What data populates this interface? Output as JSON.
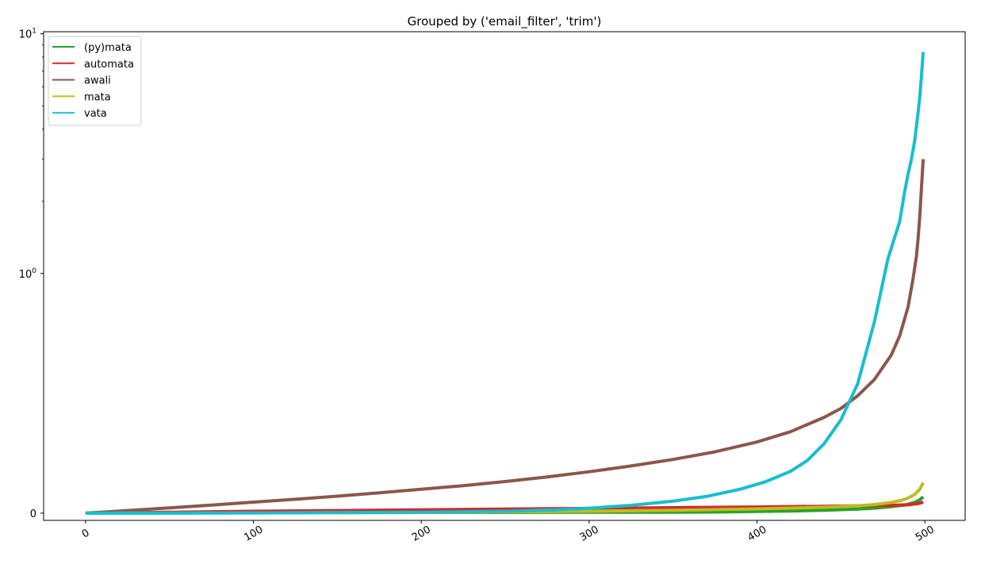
{
  "chart_data": {
    "type": "line",
    "title": "Grouped by ('email_filter', 'trim')",
    "xlabel": "",
    "ylabel": "",
    "xlim": [
      -25,
      524
    ],
    "ylim": [
      -0.03,
      10.2
    ],
    "y_scale": "symlog",
    "x_ticks": [
      0,
      100,
      200,
      300,
      400,
      500
    ],
    "x_tick_labels": [
      "0",
      "100",
      "200",
      "300",
      "400",
      "500"
    ],
    "y_ticks": [
      {
        "value": 0,
        "base": "0",
        "exp": ""
      },
      {
        "value": 1,
        "base": "10",
        "exp": "0"
      },
      {
        "value": 10,
        "base": "10",
        "exp": "1"
      }
    ],
    "legend_position": "upper left",
    "grid": false,
    "series": [
      {
        "name": "(py)mata",
        "color": "#2ca02c",
        "points": [
          [
            0,
            0
          ],
          [
            50,
            0.001
          ],
          [
            100,
            0.002
          ],
          [
            150,
            0.002
          ],
          [
            200,
            0.003
          ],
          [
            250,
            0.003
          ],
          [
            300,
            0.004
          ],
          [
            350,
            0.004
          ],
          [
            380,
            0.005
          ],
          [
            400,
            0.007
          ],
          [
            420,
            0.009
          ],
          [
            440,
            0.012
          ],
          [
            460,
            0.017
          ],
          [
            470,
            0.021
          ],
          [
            480,
            0.027
          ],
          [
            488,
            0.034
          ],
          [
            494,
            0.045
          ],
          [
            497,
            0.056
          ],
          [
            499,
            0.068
          ]
        ]
      },
      {
        "name": "automata",
        "color": "#d62728",
        "points": [
          [
            0,
            0
          ],
          [
            50,
            0.004
          ],
          [
            100,
            0.008
          ],
          [
            150,
            0.011
          ],
          [
            200,
            0.014
          ],
          [
            250,
            0.017
          ],
          [
            300,
            0.02
          ],
          [
            350,
            0.023
          ],
          [
            400,
            0.026
          ],
          [
            440,
            0.029
          ],
          [
            460,
            0.031
          ],
          [
            480,
            0.033
          ],
          [
            490,
            0.035
          ],
          [
            496,
            0.04
          ],
          [
            499,
            0.046
          ]
        ]
      },
      {
        "name": "awali",
        "color": "#8c564b",
        "points": [
          [
            0,
            0
          ],
          [
            25,
            0.011
          ],
          [
            50,
            0.022
          ],
          [
            75,
            0.034
          ],
          [
            100,
            0.046
          ],
          [
            125,
            0.058
          ],
          [
            150,
            0.071
          ],
          [
            175,
            0.085
          ],
          [
            200,
            0.1
          ],
          [
            225,
            0.115
          ],
          [
            250,
            0.132
          ],
          [
            275,
            0.151
          ],
          [
            300,
            0.173
          ],
          [
            325,
            0.197
          ],
          [
            350,
            0.224
          ],
          [
            375,
            0.256
          ],
          [
            400,
            0.297
          ],
          [
            420,
            0.34
          ],
          [
            440,
            0.4
          ],
          [
            450,
            0.437
          ],
          [
            460,
            0.49
          ],
          [
            470,
            0.558
          ],
          [
            480,
            0.66
          ],
          [
            485,
            0.74
          ],
          [
            490,
            0.86
          ],
          [
            493,
            0.98
          ],
          [
            495,
            1.18
          ],
          [
            496,
            1.4
          ],
          [
            497,
            1.75
          ],
          [
            498,
            2.3
          ],
          [
            499,
            3.0
          ]
        ]
      },
      {
        "name": "mata",
        "color": "#bcbd22",
        "points": [
          [
            0,
            0
          ],
          [
            100,
            0.001
          ],
          [
            200,
            0.003
          ],
          [
            250,
            0.005
          ],
          [
            300,
            0.008
          ],
          [
            350,
            0.012
          ],
          [
            400,
            0.018
          ],
          [
            440,
            0.025
          ],
          [
            460,
            0.031
          ],
          [
            470,
            0.036
          ],
          [
            480,
            0.045
          ],
          [
            486,
            0.053
          ],
          [
            490,
            0.063
          ],
          [
            494,
            0.078
          ],
          [
            497,
            0.1
          ],
          [
            499,
            0.128
          ]
        ]
      },
      {
        "name": "vata",
        "color": "#17becf",
        "points": [
          [
            0,
            0
          ],
          [
            100,
            0.001
          ],
          [
            200,
            0.004
          ],
          [
            250,
            0.008
          ],
          [
            280,
            0.014
          ],
          [
            300,
            0.021
          ],
          [
            325,
            0.033
          ],
          [
            350,
            0.05
          ],
          [
            370,
            0.07
          ],
          [
            390,
            0.1
          ],
          [
            405,
            0.131
          ],
          [
            420,
            0.175
          ],
          [
            430,
            0.22
          ],
          [
            440,
            0.29
          ],
          [
            450,
            0.39
          ],
          [
            460,
            0.54
          ],
          [
            470,
            0.8
          ],
          [
            478,
            1.15
          ],
          [
            485,
            1.65
          ],
          [
            488,
            2.2
          ],
          [
            490,
            2.6
          ],
          [
            492,
            3.0
          ],
          [
            494,
            3.6
          ],
          [
            496,
            4.7
          ],
          [
            497,
            5.5
          ],
          [
            498,
            6.7
          ],
          [
            499,
            8.4
          ]
        ]
      }
    ]
  }
}
